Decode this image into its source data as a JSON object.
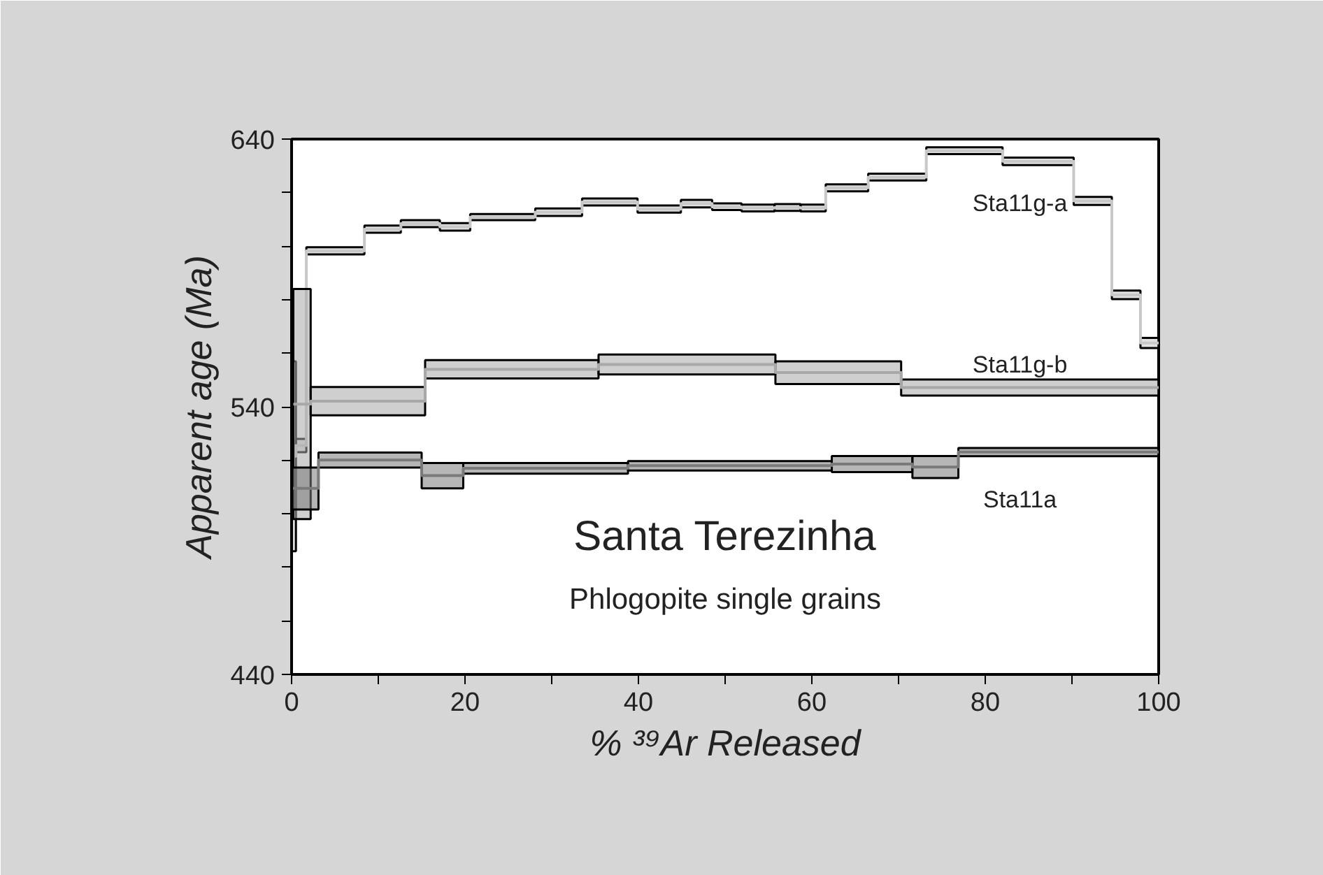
{
  "chart_data": {
    "type": "step",
    "title": "Santa Terezinha",
    "subtitle": "Phlogopite single grains",
    "xlabel": "% ³⁹Ar Released",
    "ylabel": "Apparent age (Ma)",
    "xlim": [
      0,
      100
    ],
    "ylim": [
      440,
      640
    ],
    "xticks": [
      0,
      {
        "value": 10,
        "label": null
      },
      20,
      {
        "value": 30,
        "label": null
      },
      40,
      {
        "value": 50,
        "label": null
      },
      60,
      {
        "value": 70,
        "label": null
      },
      80,
      {
        "value": 90,
        "label": null
      },
      100
    ],
    "yticks": [
      440,
      {
        "value": 460,
        "label": null
      },
      {
        "value": 480,
        "label": null
      },
      {
        "value": 500,
        "label": null
      },
      {
        "value": 520,
        "label": null
      },
      540,
      {
        "value": 560,
        "label": null
      },
      {
        "value": 580,
        "label": null
      },
      {
        "value": 600,
        "label": null
      },
      {
        "value": 620,
        "label": null
      },
      640
    ],
    "grid": false,
    "series": [
      {
        "name": "Sta11g-a",
        "color": "#c8c8c8",
        "x": [
          0,
          0.5,
          1.7,
          8.4,
          12.6,
          17.1,
          20.6,
          28.1,
          33.5,
          39.9,
          44.9,
          48.5,
          51.9,
          55.7,
          58.7,
          61.6,
          66.5,
          73.2,
          82.0,
          90.2,
          94.6,
          97.9,
          100
        ],
        "values": [
          521.5,
          525.5,
          598.2,
          606.3,
          608.4,
          607.2,
          610.8,
          612.7,
          616.5,
          613.8,
          615.9,
          614.7,
          614.2,
          614.4,
          614.2,
          621.8,
          625.8,
          635.6,
          631.7,
          616.9,
          581.8,
          563.8,
          563.8
        ],
        "lower": [
          486,
          523,
          596.9,
          605.0,
          607.1,
          605.8,
          609.7,
          611.3,
          615.2,
          612.5,
          614.5,
          613.5,
          613.0,
          613.2,
          613.0,
          620.5,
          624.5,
          634.4,
          630.3,
          615.4,
          580.2,
          561.9,
          561.9
        ],
        "upper": [
          557,
          528,
          599.6,
          607.7,
          609.7,
          608.6,
          612.0,
          614.1,
          617.8,
          615.2,
          617.3,
          616.0,
          615.5,
          615.7,
          615.5,
          623.1,
          627.1,
          636.9,
          633.1,
          618.4,
          583.4,
          565.7,
          565.7
        ]
      },
      {
        "name": "Sta11g-b",
        "color": "#a8a8a8",
        "x": [
          0.2,
          2.2,
          15.4,
          35.4,
          55.8,
          70.3,
          100
        ],
        "values": [
          541,
          542.1,
          554.0,
          555.8,
          552.8,
          547.2,
          547.2
        ],
        "lower": [
          498,
          536.8,
          550.6,
          552.1,
          548.5,
          544.2,
          544.2
        ],
        "upper": [
          584,
          547.4,
          557.4,
          559.5,
          557.0,
          550.2,
          550.2
        ]
      },
      {
        "name": "Sta11a",
        "color": "#7a7a7a",
        "x": [
          0,
          3.1,
          15.0,
          19.8,
          38.8,
          62.3,
          71.6,
          76.9,
          100
        ],
        "values": [
          509.5,
          520.1,
          514.3,
          517.0,
          518.0,
          518.6,
          517.5,
          523.1,
          523.1
        ],
        "lower": [
          501.6,
          517.3,
          509.5,
          515.0,
          516.2,
          515.6,
          513.4,
          521.5,
          521.5
        ],
        "upper": [
          517.3,
          522.9,
          519.0,
          519.0,
          519.7,
          521.6,
          521.6,
          524.6,
          524.6
        ]
      }
    ]
  }
}
